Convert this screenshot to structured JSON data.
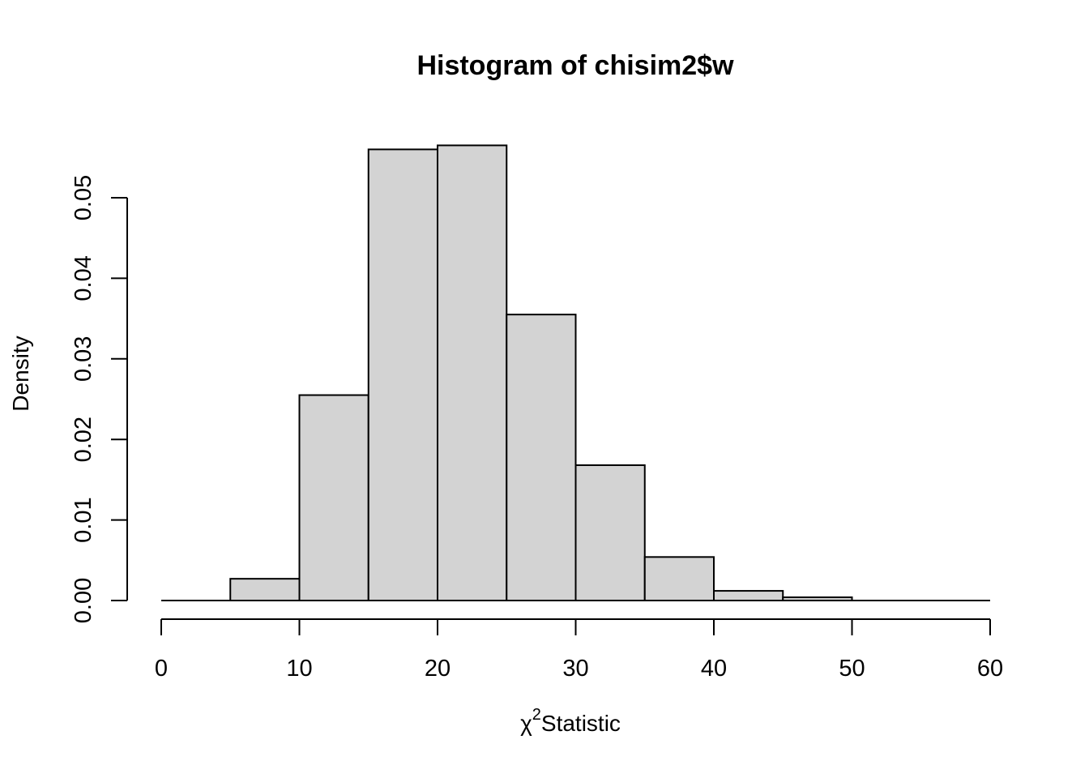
{
  "chart_data": {
    "type": "bar",
    "title": "Histogram of chisim2$w",
    "xlabel": "Statistic",
    "xlabel_symbol": "χ",
    "xlabel_superscript": "2",
    "ylabel": "Density",
    "bins": [
      {
        "x0": 0,
        "x1": 5,
        "density": 0.0
      },
      {
        "x0": 5,
        "x1": 10,
        "density": 0.0027
      },
      {
        "x0": 10,
        "x1": 15,
        "density": 0.0255
      },
      {
        "x0": 15,
        "x1": 20,
        "density": 0.056
      },
      {
        "x0": 20,
        "x1": 25,
        "density": 0.0565
      },
      {
        "x0": 25,
        "x1": 30,
        "density": 0.0355
      },
      {
        "x0": 30,
        "x1": 35,
        "density": 0.0168
      },
      {
        "x0": 35,
        "x1": 40,
        "density": 0.0054
      },
      {
        "x0": 40,
        "x1": 45,
        "density": 0.0012
      },
      {
        "x0": 45,
        "x1": 50,
        "density": 0.0004
      },
      {
        "x0": 50,
        "x1": 55,
        "density": 0.0
      },
      {
        "x0": 55,
        "x1": 60,
        "density": 0.0
      }
    ],
    "xlim": [
      0,
      60
    ],
    "ylim": [
      0,
      0.05
    ],
    "xticks": [
      "0",
      "10",
      "20",
      "30",
      "40",
      "50",
      "60"
    ],
    "xtick_values": [
      0,
      10,
      20,
      30,
      40,
      50,
      60
    ],
    "yticks": [
      "0.00",
      "0.01",
      "0.02",
      "0.03",
      "0.04",
      "0.05"
    ],
    "ytick_values": [
      0,
      0.01,
      0.02,
      0.03,
      0.04,
      0.05
    ],
    "bar_fill": "#d3d3d3",
    "grid": false
  }
}
